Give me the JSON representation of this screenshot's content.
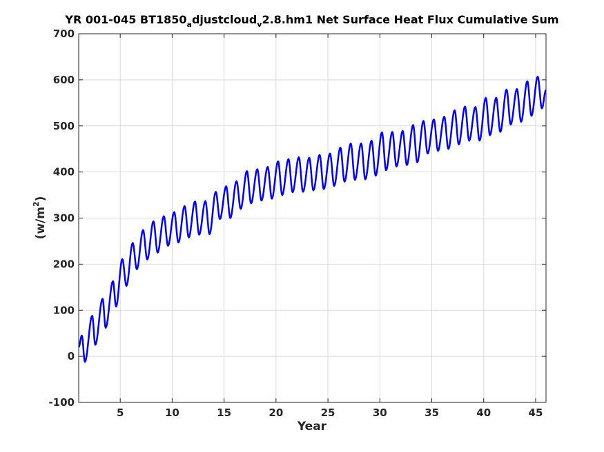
{
  "chart_data": {
    "type": "line",
    "title": {
      "part1": "YR 001-045 BT1850",
      "sub1": "a",
      "part2": "djustcloud",
      "sub2": "v",
      "part3": "2.8.hm1 Net Surface Heat Flux  Cumulative Sum"
    },
    "xlabel": "Year",
    "ylabel": {
      "base": "(w/m",
      "sup": "2",
      "close": ")"
    },
    "xlim": [
      1,
      46
    ],
    "ylim": [
      -100,
      700
    ],
    "xticks": [
      5,
      10,
      15,
      20,
      25,
      30,
      35,
      40,
      45
    ],
    "yticks": [
      -100,
      0,
      100,
      200,
      300,
      400,
      500,
      600,
      700
    ],
    "grid": true,
    "series_color": "#0000ff",
    "series": [
      {
        "annual_peaks": [
          [
            1.3,
            45
          ],
          [
            2.3,
            88
          ],
          [
            3.3,
            125
          ],
          [
            4.3,
            163
          ],
          [
            5.2,
            211
          ],
          [
            6.2,
            246
          ],
          [
            7.2,
            274
          ],
          [
            8.2,
            293
          ],
          [
            9.2,
            304
          ],
          [
            10.2,
            313
          ],
          [
            11.2,
            326
          ],
          [
            12.2,
            336
          ],
          [
            13.2,
            337
          ],
          [
            14.2,
            357
          ],
          [
            15.2,
            369
          ],
          [
            16.2,
            380
          ],
          [
            17.2,
            402
          ],
          [
            18.2,
            406
          ],
          [
            19.2,
            411
          ],
          [
            20.2,
            423
          ],
          [
            21.2,
            428
          ],
          [
            22.2,
            432
          ],
          [
            23.2,
            431
          ],
          [
            24.2,
            437
          ],
          [
            25.2,
            440
          ],
          [
            26.2,
            453
          ],
          [
            27.2,
            462
          ],
          [
            28.2,
            462
          ],
          [
            29.2,
            468
          ],
          [
            30.2,
            486
          ],
          [
            31.2,
            487
          ],
          [
            32.2,
            489
          ],
          [
            33.2,
            502
          ],
          [
            34.2,
            511
          ],
          [
            35.2,
            514
          ],
          [
            36.2,
            520
          ],
          [
            37.2,
            534
          ],
          [
            38.2,
            542
          ],
          [
            39.2,
            541
          ],
          [
            40.2,
            561
          ],
          [
            41.2,
            561
          ],
          [
            42.2,
            579
          ],
          [
            43.2,
            580
          ],
          [
            44.2,
            597
          ],
          [
            45.2,
            607
          ]
        ],
        "annual_troughs": [
          [
            1.6,
            -12
          ],
          [
            2.6,
            25
          ],
          [
            3.6,
            62
          ],
          [
            4.6,
            108
          ],
          [
            5.6,
            153
          ],
          [
            6.6,
            189
          ],
          [
            7.6,
            210
          ],
          [
            8.6,
            225
          ],
          [
            9.6,
            240
          ],
          [
            10.6,
            247
          ],
          [
            11.6,
            258
          ],
          [
            12.6,
            264
          ],
          [
            13.6,
            265
          ],
          [
            14.6,
            298
          ],
          [
            15.6,
            300
          ],
          [
            16.6,
            320
          ],
          [
            17.6,
            332
          ],
          [
            18.6,
            338
          ],
          [
            19.6,
            342
          ],
          [
            20.6,
            350
          ],
          [
            21.6,
            356
          ],
          [
            22.6,
            357
          ],
          [
            23.6,
            360
          ],
          [
            24.6,
            363
          ],
          [
            25.6,
            370
          ],
          [
            26.6,
            379
          ],
          [
            27.6,
            383
          ],
          [
            28.6,
            384
          ],
          [
            29.6,
            392
          ],
          [
            30.6,
            404
          ],
          [
            31.6,
            412
          ],
          [
            32.6,
            415
          ],
          [
            33.6,
            421
          ],
          [
            34.6,
            440
          ],
          [
            35.6,
            446
          ],
          [
            36.6,
            450
          ],
          [
            37.6,
            460
          ],
          [
            38.6,
            468
          ],
          [
            39.6,
            468
          ],
          [
            40.6,
            480
          ],
          [
            41.6,
            487
          ],
          [
            42.6,
            503
          ],
          [
            43.6,
            509
          ],
          [
            44.6,
            522
          ],
          [
            45.6,
            538
          ]
        ],
        "start": [
          1.0,
          20
        ],
        "end": [
          46.0,
          578
        ]
      }
    ]
  }
}
